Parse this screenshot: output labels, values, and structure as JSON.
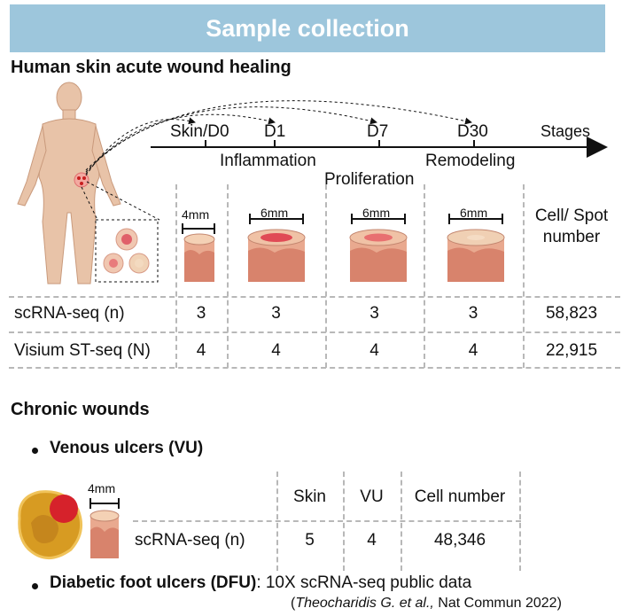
{
  "header": {
    "title": "Sample collection"
  },
  "acute": {
    "title": "Human skin acute wound healing",
    "timeline": {
      "points": [
        "Skin/D0",
        "D1",
        "D7",
        "D30"
      ],
      "stages_label": "Stages",
      "phases": [
        "Inflammation",
        "Proliferation",
        "Remodeling"
      ]
    },
    "biopsy_sizes": [
      "4mm",
      "6mm",
      "6mm",
      "6mm"
    ],
    "count_header": "Cell/ Spot number",
    "rows": [
      {
        "label": "scRNA-seq (n)",
        "values": [
          "3",
          "3",
          "3",
          "3"
        ],
        "total": "58,823"
      },
      {
        "label": "Visium ST-seq (N)",
        "values": [
          "4",
          "4",
          "4",
          "4"
        ],
        "total": "22,915"
      }
    ]
  },
  "chronic": {
    "title": "Chronic wounds",
    "vu": {
      "title": "Venous ulcers (VU)",
      "biopsy_size": "4mm",
      "headers": [
        "Skin",
        "VU",
        "Cell number"
      ],
      "row": {
        "label": "scRNA-seq (n)",
        "values": [
          "5",
          "4",
          "48,346"
        ]
      }
    },
    "dfu": {
      "title_bold": "Diabetic foot ulcers (DFU)",
      "title_rest": ": 10X scRNA-seq public data",
      "citation_open": "(",
      "citation_italic": "Theocharidis G. et al.,",
      "citation_rest": " Nat Commun 2022)"
    }
  },
  "colors": {
    "header_bg": "#9dc6dc",
    "wound_red": "#d84a4a",
    "skin": "#e9a98f",
    "dashed": "#b8b8b8"
  }
}
